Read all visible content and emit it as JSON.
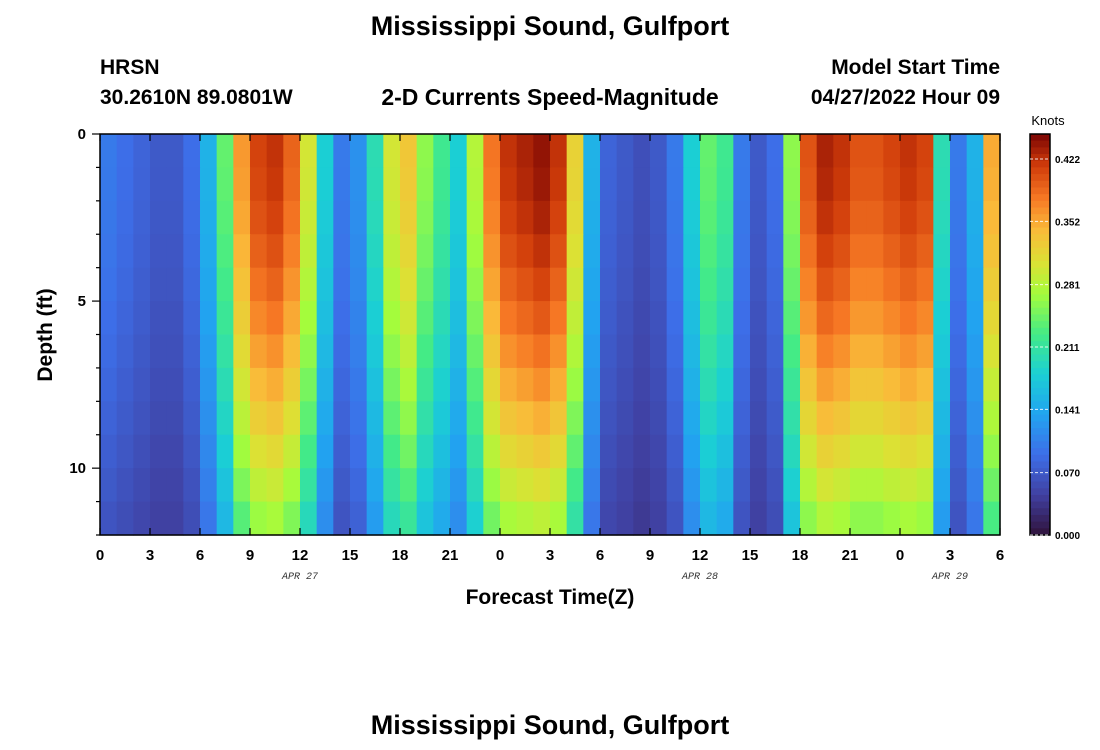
{
  "header": {
    "title": "Mississippi Sound, Gulfport",
    "station": "HRSN",
    "coords": "30.2610N  89.0801W",
    "subtitle": "2-D Currents Speed-Magnitude",
    "model_start_label": "Model Start Time",
    "model_start_value": "04/27/2022 Hour 09"
  },
  "footer": {
    "title": "Mississippi Sound, Gulfport"
  },
  "chart_data": {
    "type": "heatmap",
    "title": "2-D Currents Speed-Magnitude",
    "xlabel": "Forecast Time(Z)",
    "ylabel": "Depth (ft)",
    "colorbar_label": "Knots",
    "x_tick_labels": [
      "0",
      "3",
      "6",
      "9",
      "12",
      "15",
      "18",
      "21",
      "0",
      "3",
      "6",
      "9",
      "12",
      "15",
      "18",
      "21",
      "0",
      "3",
      "6"
    ],
    "x_date_labels": [
      {
        "label": "APR 27",
        "at_hour": 12
      },
      {
        "label": "APR 28",
        "at_hour": 36
      },
      {
        "label": "APR 29",
        "at_hour": 51
      }
    ],
    "xlim_hours": [
      0,
      54
    ],
    "y_tick_labels": [
      "0",
      "5",
      "10"
    ],
    "y_ticks": [
      0,
      5,
      10
    ],
    "ylim": [
      0,
      12
    ],
    "y_inverted": true,
    "colorbar_ticks": [
      "0.000",
      "0.070",
      "0.141",
      "0.211",
      "0.281",
      "0.352",
      "0.422"
    ],
    "colorbar_range": [
      0,
      0.45
    ],
    "depth_levels": 12,
    "time_steps": 54,
    "surface_speed_profile": [
      0.1,
      0.09,
      0.08,
      0.07,
      0.07,
      0.09,
      0.15,
      0.24,
      0.36,
      0.41,
      0.42,
      0.39,
      0.3,
      0.18,
      0.1,
      0.12,
      0.2,
      0.3,
      0.33,
      0.26,
      0.22,
      0.18,
      0.28,
      0.38,
      0.42,
      0.43,
      0.44,
      0.42,
      0.32,
      0.15,
      0.08,
      0.07,
      0.06,
      0.07,
      0.1,
      0.18,
      0.24,
      0.22,
      0.1,
      0.07,
      0.09,
      0.26,
      0.4,
      0.43,
      0.42,
      0.4,
      0.4,
      0.41,
      0.42,
      0.41,
      0.2,
      0.1,
      0.15,
      0.35
    ]
  }
}
